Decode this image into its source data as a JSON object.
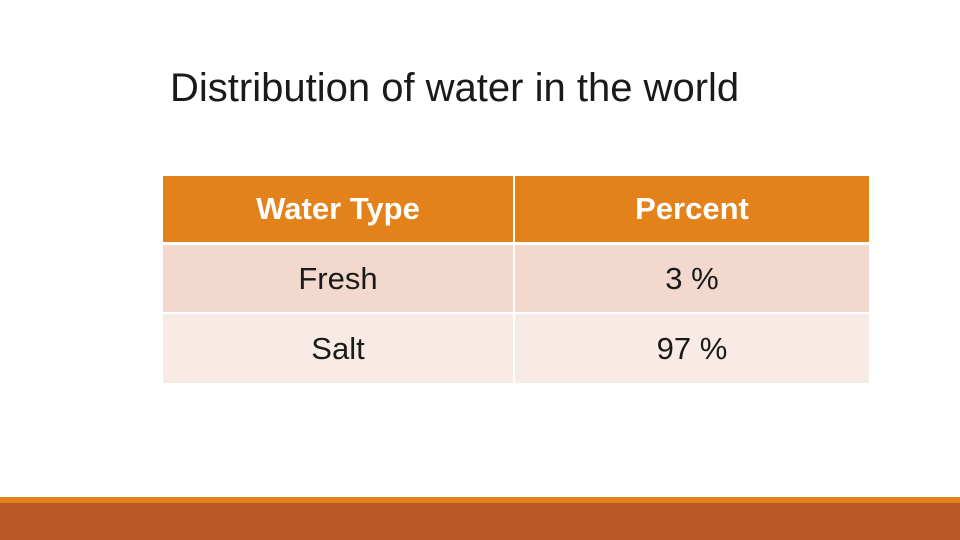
{
  "slide": {
    "title": "Distribution of water in the world"
  },
  "table": {
    "headers": [
      "Water Type",
      "Percent"
    ],
    "rows": [
      [
        "Fresh",
        "3 %"
      ],
      [
        "Salt",
        "97 %"
      ]
    ]
  },
  "colors": {
    "header_bg": "#e3821a",
    "row_odd_bg": "#f3d9cd",
    "row_even_bg": "#f8ebe6",
    "footer_accent": "#e3821a",
    "footer_band": "#bb5828"
  }
}
